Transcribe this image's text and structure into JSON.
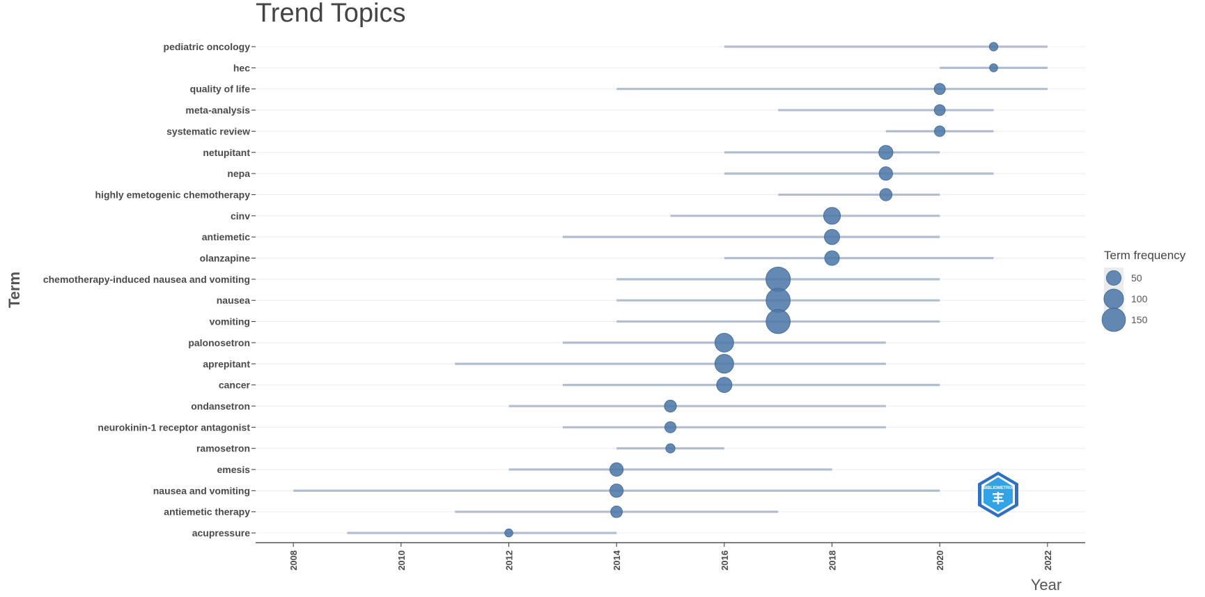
{
  "chart_data": {
    "type": "scatter",
    "title": "Trend Topics",
    "xlabel": "Year",
    "ylabel": "Term",
    "xlim": [
      2007.3,
      2022.7
    ],
    "x_ticks": [
      2008,
      2010,
      2012,
      2014,
      2016,
      2018,
      2020,
      2022
    ],
    "legend": {
      "title": "Term frequency",
      "placement": "right",
      "entries": [
        50,
        100,
        150
      ]
    },
    "colors": {
      "point": "#4f79a7",
      "range": "#b3bdd0",
      "grid": "#ececec",
      "axis": "#333333"
    },
    "terms": [
      {
        "term": "pediatric oncology",
        "start": 2016,
        "median": 2021,
        "end": 2022,
        "freq": 12
      },
      {
        "term": "hec",
        "start": 2020,
        "median": 2021,
        "end": 2022,
        "freq": 10
      },
      {
        "term": "quality of life",
        "start": 2014,
        "median": 2020,
        "end": 2022,
        "freq": 25
      },
      {
        "term": "meta-analysis",
        "start": 2017,
        "median": 2020,
        "end": 2021,
        "freq": 24
      },
      {
        "term": "systematic review",
        "start": 2019,
        "median": 2020,
        "end": 2021,
        "freq": 22
      },
      {
        "term": "netupitant",
        "start": 2016,
        "median": 2019,
        "end": 2020,
        "freq": 45
      },
      {
        "term": "nepa",
        "start": 2016,
        "median": 2019,
        "end": 2021,
        "freq": 40
      },
      {
        "term": "highly emetogenic chemotherapy",
        "start": 2017,
        "median": 2019,
        "end": 2020,
        "freq": 32
      },
      {
        "term": "cinv",
        "start": 2015,
        "median": 2018,
        "end": 2020,
        "freq": 70
      },
      {
        "term": "antiemetic",
        "start": 2013,
        "median": 2018,
        "end": 2020,
        "freq": 55
      },
      {
        "term": "olanzapine",
        "start": 2016,
        "median": 2018,
        "end": 2021,
        "freq": 50
      },
      {
        "term": "chemotherapy-induced nausea and vomiting",
        "start": 2014,
        "median": 2017,
        "end": 2020,
        "freq": 165
      },
      {
        "term": "nausea",
        "start": 2014,
        "median": 2017,
        "end": 2020,
        "freq": 160
      },
      {
        "term": "vomiting",
        "start": 2014,
        "median": 2017,
        "end": 2020,
        "freq": 160
      },
      {
        "term": "palonosetron",
        "start": 2013,
        "median": 2016,
        "end": 2019,
        "freq": 90
      },
      {
        "term": "aprepitant",
        "start": 2011,
        "median": 2016,
        "end": 2019,
        "freq": 90
      },
      {
        "term": "cancer",
        "start": 2013,
        "median": 2016,
        "end": 2020,
        "freq": 55
      },
      {
        "term": "ondansetron",
        "start": 2012,
        "median": 2015,
        "end": 2019,
        "freq": 30
      },
      {
        "term": "neurokinin-1 receptor antagonist",
        "start": 2013,
        "median": 2015,
        "end": 2019,
        "freq": 25
      },
      {
        "term": "ramosetron",
        "start": 2014,
        "median": 2015,
        "end": 2016,
        "freq": 15
      },
      {
        "term": "emesis",
        "start": 2012,
        "median": 2014,
        "end": 2018,
        "freq": 40
      },
      {
        "term": "nausea and vomiting",
        "start": 2008,
        "median": 2014,
        "end": 2020,
        "freq": 40
      },
      {
        "term": "antiemetic therapy",
        "start": 2011,
        "median": 2014,
        "end": 2017,
        "freq": 28
      },
      {
        "term": "acupressure",
        "start": 2009,
        "median": 2012,
        "end": 2014,
        "freq": 10
      }
    ]
  },
  "logo": {
    "name": "bibliometrix-logo-icon",
    "text": "BIBLIOMETRIX"
  }
}
